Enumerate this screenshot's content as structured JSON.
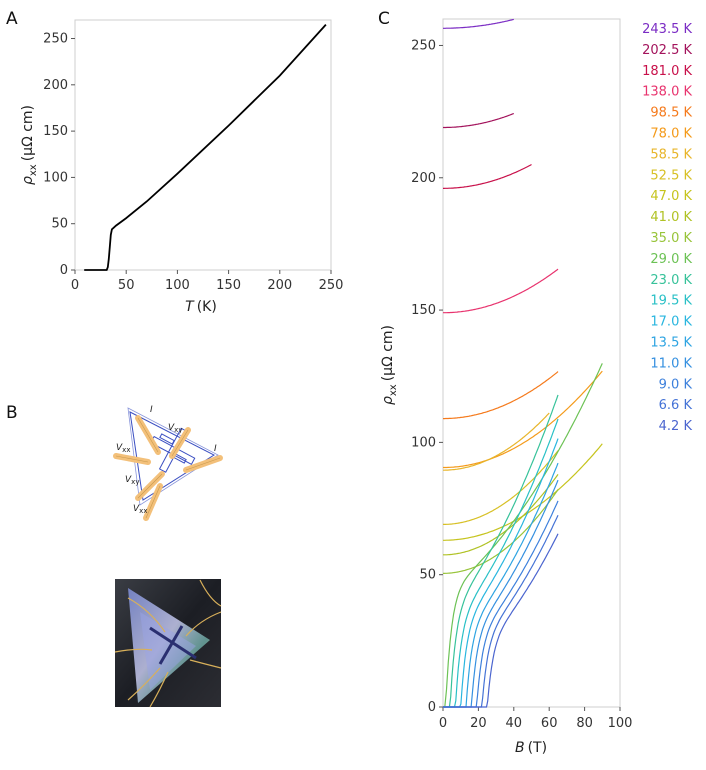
{
  "panels": {
    "a": "A",
    "b": "B",
    "c": "C"
  },
  "chart_data": [
    {
      "type": "line",
      "panel": "A",
      "xlabel_sym": "T",
      "xlabel_unit": "(K)",
      "ylabel_sym": "ρ",
      "ylabel_sub": "xx",
      "ylabel_unit": "(μΩ cm)",
      "xlim": [
        0,
        250
      ],
      "ylim": [
        0,
        270
      ],
      "xticks": [
        0,
        50,
        100,
        150,
        200,
        250
      ],
      "yticks": [
        0,
        50,
        100,
        150,
        200,
        250
      ],
      "series": [
        {
          "color": "#000000",
          "x": [
            9,
            31,
            32,
            33,
            34,
            35,
            36,
            40,
            50,
            70,
            100,
            150,
            200,
            245
          ],
          "y": [
            0,
            0,
            3,
            12,
            25,
            38,
            44,
            48,
            56,
            74,
            104,
            156,
            210,
            265
          ]
        }
      ]
    },
    {
      "type": "line",
      "panel": "C",
      "xlabel_sym": "B",
      "xlabel_unit": "(T)",
      "ylabel_sym": "ρ",
      "ylabel_sub": "xx",
      "ylabel_unit": "(μΩ cm)",
      "xlim": [
        0,
        100
      ],
      "ylim": [
        0,
        260
      ],
      "xticks": [
        0,
        20,
        40,
        60,
        80,
        100
      ],
      "yticks": [
        0,
        50,
        100,
        150,
        200,
        250
      ],
      "series": [
        {
          "name": "243.5 K",
          "color": "#7b2cc4",
          "y0": 256.5,
          "bmax": 40,
          "coef": 0.7,
          "bc": 0
        },
        {
          "name": "202.5 K",
          "color": "#a3135c",
          "y0": 219.0,
          "bmax": 40,
          "coef": 1.1,
          "bc": 0
        },
        {
          "name": "181.0 K",
          "color": "#c8104a",
          "y0": 196.0,
          "bmax": 50,
          "coef": 1.2,
          "bc": 0
        },
        {
          "name": "138.0 K",
          "color": "#e8336e",
          "y0": 149.0,
          "bmax": 65,
          "coef": 1.3,
          "bc": 0
        },
        {
          "name": "98.5 K",
          "color": "#f57a1c",
          "y0": 109.0,
          "bmax": 65,
          "coef": 1.4,
          "bc": 0
        },
        {
          "name": "78.0 K",
          "color": "#f49a1a",
          "y0": 90.5,
          "bmax": 90,
          "coef": 1.5,
          "bc": 0
        },
        {
          "name": "58.5 K",
          "color": "#e8b52a",
          "y0": 89.5,
          "bmax": 60,
          "coef": 2.0,
          "bc": 0
        },
        {
          "name": "52.5 K",
          "color": "#d7c025",
          "y0": 69.0,
          "bmax": 65,
          "coef": 2.2,
          "bc": 0
        },
        {
          "name": "47.0 K",
          "color": "#c6c41e",
          "y0": 63.0,
          "bmax": 90,
          "coef": 1.5,
          "bc": 0
        },
        {
          "name": "41.0 K",
          "color": "#b0c224",
          "y0": 57.5,
          "bmax": 65,
          "coef": 2.4,
          "bc": 0
        },
        {
          "name": "35.0 K",
          "color": "#98c43a",
          "y0": 50.5,
          "bmax": 65,
          "coef": 2.5,
          "bc": 0
        },
        {
          "name": "29.0 K",
          "color": "#6cc255",
          "y0": 43.5,
          "bmax": 90,
          "coef": 1.6,
          "bc": 1.5
        },
        {
          "name": "23.0 K",
          "color": "#37c29a",
          "y0": 36.5,
          "bmax": 65,
          "coef": 2.6,
          "bc": 4
        },
        {
          "name": "19.5 K",
          "color": "#29c0c6",
          "y0": 33.0,
          "bmax": 65,
          "coef": 2.6,
          "bc": 7
        },
        {
          "name": "17.0 K",
          "color": "#29b6df",
          "y0": 31.0,
          "bmax": 65,
          "coef": 2.6,
          "bc": 10
        },
        {
          "name": "13.5 K",
          "color": "#2ea4e2",
          "y0": 29.5,
          "bmax": 65,
          "coef": 2.5,
          "bc": 13
        },
        {
          "name": "11.0 K",
          "color": "#3590e0",
          "y0": 28.0,
          "bmax": 65,
          "coef": 2.5,
          "bc": 16
        },
        {
          "name": "9.0 K",
          "color": "#3d80dc",
          "y0": 27.0,
          "bmax": 65,
          "coef": 2.4,
          "bc": 19
        },
        {
          "name": "6.6 K",
          "color": "#4573d6",
          "y0": 26.0,
          "bmax": 65,
          "coef": 2.4,
          "bc": 22
        },
        {
          "name": "4.2 K",
          "color": "#4b65cf",
          "y0": 25.0,
          "bmax": 65,
          "coef": 2.3,
          "bc": 25
        }
      ]
    }
  ],
  "schematic": {
    "labels": {
      "i1": "I",
      "i2": "I",
      "vxx1": "V",
      "vxx2": "V",
      "vxy1": "V",
      "vxy2": "V",
      "sub_xx": "xx",
      "sub_xy": "xy"
    },
    "outline_color": "#3b4fc2",
    "lead_color": "#f3c07a"
  }
}
